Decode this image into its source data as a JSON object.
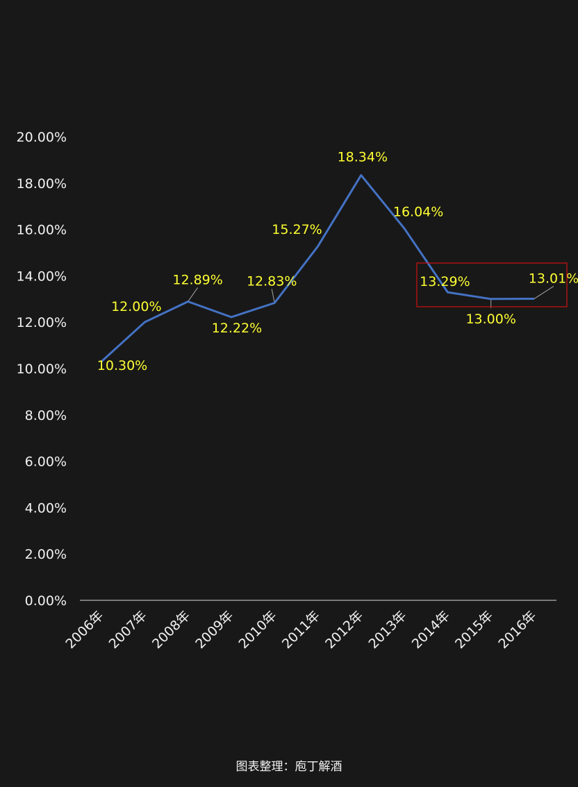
{
  "colors": {
    "background": "#181818",
    "line": "#4472c4",
    "data_label": "#ffff33",
    "axis_text": "#f2f2f2",
    "highlight_box": "#d01010"
  },
  "chart_data": {
    "type": "line",
    "categories": [
      "2006年",
      "2007年",
      "2008年",
      "2009年",
      "2010年",
      "2011年",
      "2012年",
      "2013年",
      "2014年",
      "2015年",
      "2016年"
    ],
    "series": [
      {
        "values": [
          10.3,
          12.0,
          12.89,
          12.22,
          12.83,
          15.27,
          18.34,
          16.04,
          13.29,
          13.0,
          13.01
        ],
        "labels": [
          "10.30%",
          "12.00%",
          "12.89%",
          "12.22%",
          "12.83%",
          "15.27%",
          "18.34%",
          "16.04%",
          "13.29%",
          "13.00%",
          "13.01%"
        ]
      }
    ],
    "y_tick_labels": [
      "0.00%",
      "2.00%",
      "4.00%",
      "6.00%",
      "8.00%",
      "10.00%",
      "12.00%",
      "14.00%",
      "16.00%",
      "18.00%",
      "20.00%"
    ],
    "ylim": [
      0,
      20
    ],
    "grid": false,
    "legend": "none",
    "annotations": [
      "highlight box around 2014年–2016年 data"
    ]
  },
  "footer": {
    "source": "图表整理：庖丁解酒"
  }
}
